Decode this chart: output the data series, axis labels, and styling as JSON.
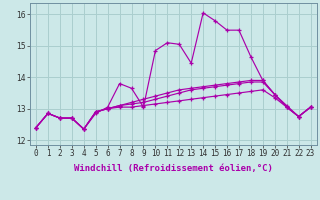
{
  "xlabel": "Windchill (Refroidissement éolien,°C)",
  "bg_color": "#cce8e8",
  "line_color": "#aa00aa",
  "grid_color": "#aacece",
  "xlim": [
    -0.5,
    23.5
  ],
  "ylim": [
    11.85,
    16.35
  ],
  "yticks": [
    12,
    13,
    14,
    15,
    16
  ],
  "xticks": [
    0,
    1,
    2,
    3,
    4,
    5,
    6,
    7,
    8,
    9,
    10,
    11,
    12,
    13,
    14,
    15,
    16,
    17,
    18,
    19,
    20,
    21,
    22,
    23
  ],
  "series0": [
    12.4,
    12.85,
    12.7,
    12.7,
    12.35,
    12.85,
    13.05,
    13.8,
    13.65,
    13.05,
    14.85,
    15.1,
    15.05,
    14.45,
    16.05,
    15.8,
    15.5,
    15.5,
    14.65,
    13.9,
    13.45,
    13.1,
    12.75,
    13.05
  ],
  "series1": [
    12.4,
    12.85,
    12.7,
    12.7,
    12.35,
    12.9,
    13.0,
    13.05,
    13.05,
    13.1,
    13.15,
    13.2,
    13.25,
    13.3,
    13.35,
    13.4,
    13.45,
    13.5,
    13.55,
    13.6,
    13.35,
    13.05,
    12.75,
    13.05
  ],
  "series2": [
    12.4,
    12.85,
    12.7,
    12.7,
    12.35,
    12.9,
    13.0,
    13.1,
    13.15,
    13.2,
    13.3,
    13.4,
    13.5,
    13.6,
    13.65,
    13.7,
    13.75,
    13.8,
    13.85,
    13.85,
    13.45,
    13.05,
    12.75,
    13.05
  ],
  "series3": [
    12.4,
    12.85,
    12.7,
    12.7,
    12.35,
    12.9,
    13.0,
    13.1,
    13.2,
    13.3,
    13.4,
    13.5,
    13.6,
    13.65,
    13.7,
    13.75,
    13.8,
    13.85,
    13.9,
    13.9,
    13.45,
    13.05,
    12.75,
    13.05
  ],
  "tick_fontsize": 5.5,
  "xlabel_fontsize": 6.5
}
